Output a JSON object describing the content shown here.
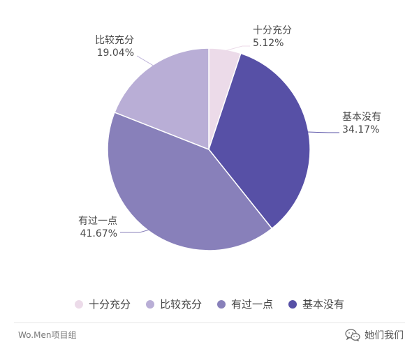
{
  "chart_data": {
    "type": "pie",
    "title": "",
    "slices": [
      {
        "name": "十分充分",
        "value": 5.12,
        "label": "5.12%",
        "color": "#ecdbe9"
      },
      {
        "name": "基本没有",
        "value": 34.17,
        "label": "34.17%",
        "color": "#5750a6"
      },
      {
        "name": "有过一点",
        "value": 41.67,
        "label": "41.67%",
        "color": "#8880ba"
      },
      {
        "name": "比较充分",
        "value": 19.04,
        "label": "19.04%",
        "color": "#b9aed6"
      }
    ],
    "legend": [
      "十分充分",
      "比较充分",
      "有过一点",
      "基本没有"
    ],
    "legend_placement": "bottom"
  },
  "footer": {
    "source": "Wo.Men项目组",
    "account": "她们我们",
    "icon": "wechat-icon"
  }
}
